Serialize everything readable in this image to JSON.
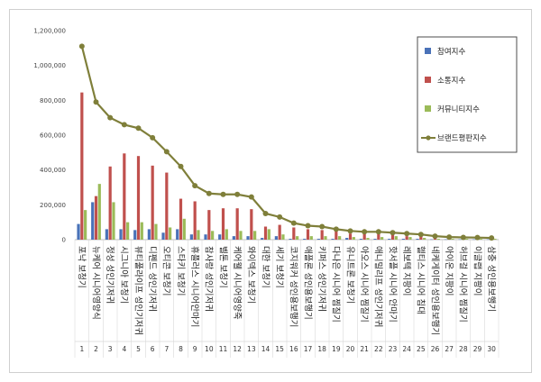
{
  "chart_data": {
    "type": "bar",
    "categories": [
      "포낙 보청기",
      "뉴케어 시니어영양식",
      "정성 성인기저귀",
      "시그니아 보청기",
      "뷰티풀라이프 성인기저귀",
      "디펜드 성인기저귀",
      "오티콘 보청기",
      "스타키 보청기",
      "휴플러스 시니어안마기",
      "참사랑 성인기저귀",
      "벨톤 보청기",
      "케어웰 시니어영양죽",
      "와이덱스 보청기",
      "대한 보청기",
      "세기 보청기",
      "코지워커 성인용보행기",
      "애플론 성인용보행기",
      "키퍼스 성인기저귀",
      "다나은 시니어 찜질기",
      "유니트론 보청기",
      "아오스 시니어 찜질기",
      "애니밀리프 성인기저귀",
      "핫서플 시니어 안마기",
      "레보텍 지팡이",
      "헬티스 시니어 침대",
      "네케게이터 성인용보행기",
      "아이온 지팡이",
      "허브걸 시니어 찜질기",
      "이글랩 지팡이",
      "삼충 성인용보행기"
    ],
    "ranks": [
      "1",
      "2",
      "3",
      "4",
      "5",
      "6",
      "7",
      "8",
      "9",
      "10",
      "11",
      "12",
      "13",
      "14",
      "15",
      "16",
      "17",
      "18",
      "19",
      "20",
      "21",
      "22",
      "23",
      "24",
      "25",
      "26",
      "27",
      "28",
      "29",
      "30"
    ],
    "series": [
      {
        "name": "참여지수",
        "kind": "bar",
        "color": "#4a72b8",
        "values": [
          90000,
          215000,
          60000,
          60000,
          55000,
          60000,
          40000,
          60000,
          30000,
          30000,
          30000,
          20000,
          20000,
          10000,
          20000,
          5000,
          5000,
          5000,
          5000,
          10000,
          5000,
          5000,
          5000,
          5000,
          5000,
          2000,
          2000,
          2000,
          2000,
          2000
        ]
      },
      {
        "name": "소통지수",
        "kind": "bar",
        "color": "#c0504d",
        "values": [
          845000,
          250000,
          420000,
          495000,
          480000,
          425000,
          385000,
          235000,
          220000,
          170000,
          180000,
          180000,
          175000,
          75000,
          85000,
          70000,
          60000,
          55000,
          50000,
          35000,
          40000,
          35000,
          30000,
          20000,
          20000,
          15000,
          10000,
          10000,
          10000,
          5000
        ]
      },
      {
        "name": "커뮤니티지수",
        "kind": "bar",
        "color": "#9bbb59",
        "values": [
          170000,
          320000,
          215000,
          100000,
          100000,
          90000,
          70000,
          120000,
          55000,
          50000,
          60000,
          50000,
          50000,
          60000,
          30000,
          20000,
          20000,
          20000,
          20000,
          15000,
          10000,
          15000,
          20000,
          15000,
          10000,
          5000,
          5000,
          5000,
          5000,
          5000
        ]
      },
      {
        "name": "브랜드평판지수",
        "kind": "line",
        "color": "#7f7f3a",
        "values": [
          1110000,
          790000,
          700000,
          660000,
          640000,
          585000,
          505000,
          420000,
          310000,
          265000,
          260000,
          260000,
          245000,
          150000,
          130000,
          95000,
          80000,
          75000,
          60000,
          50000,
          45000,
          45000,
          40000,
          35000,
          30000,
          20000,
          15000,
          13000,
          12000,
          10000
        ]
      }
    ],
    "yticks": [
      "0",
      "200,000",
      "400,000",
      "600,000",
      "800,000",
      "1,000,000",
      "1,200,000"
    ],
    "ylim": [
      0,
      1200000
    ],
    "title": "",
    "xlabel": "",
    "ylabel": "",
    "legend": "top-right"
  }
}
